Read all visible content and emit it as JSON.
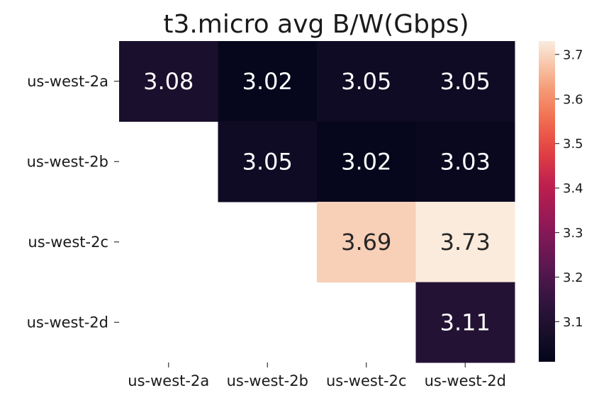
{
  "chart_data": {
    "type": "heatmap",
    "title": "t3.micro avg B/W(Gbps)",
    "xlabel": "",
    "ylabel": "",
    "x_categories": [
      "us-west-2a",
      "us-west-2b",
      "us-west-2c",
      "us-west-2d"
    ],
    "y_categories": [
      "us-west-2a",
      "us-west-2b",
      "us-west-2c",
      "us-west-2d"
    ],
    "values": [
      [
        3.08,
        3.02,
        3.05,
        3.05
      ],
      [
        null,
        3.05,
        3.02,
        3.03
      ],
      [
        null,
        null,
        3.69,
        3.73
      ],
      [
        null,
        null,
        null,
        3.11
      ]
    ],
    "value_format": "0.00",
    "colormap": "rocket",
    "colorbar": {
      "range": [
        3.01,
        3.73
      ],
      "ticks": [
        "3.1",
        "3.2",
        "3.3",
        "3.4",
        "3.5",
        "3.6",
        "3.7"
      ],
      "placement": "right"
    },
    "grid": false,
    "missing_cells": "blank"
  }
}
